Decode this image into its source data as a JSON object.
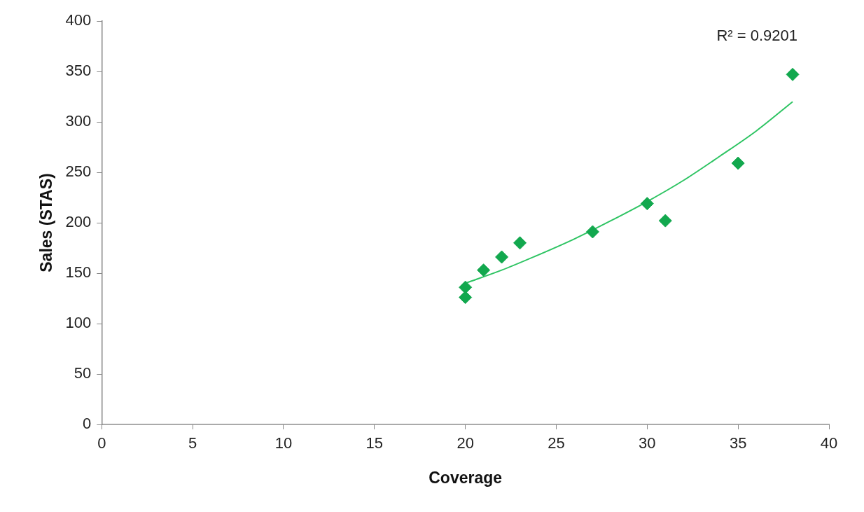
{
  "chart_data": {
    "type": "scatter",
    "xlabel": "Coverage",
    "ylabel": "Sales (STAS)",
    "xlim": [
      0,
      40
    ],
    "xticks": [
      0,
      5,
      10,
      15,
      20,
      25,
      30,
      35,
      40
    ],
    "ylim": [
      0,
      400
    ],
    "yticks": [
      0,
      50,
      100,
      150,
      200,
      250,
      300,
      350,
      400
    ],
    "grid": false,
    "legend": false,
    "marker": "diamond",
    "series": [
      {
        "color": "#12a84e",
        "x": [
          20,
          20,
          21,
          22,
          23,
          27,
          30,
          31,
          35,
          38
        ],
        "values": [
          136,
          126,
          153,
          166,
          180,
          191,
          219,
          202,
          259,
          347
        ]
      },
      {
        "type": "line",
        "marker": "none",
        "color": "#2ec463",
        "x": [
          20,
          22,
          24,
          26,
          28,
          30,
          32,
          34,
          36,
          38
        ],
        "values": [
          140,
          153,
          168,
          184,
          202,
          221,
          242,
          266,
          291,
          320
        ]
      }
    ],
    "annotations": [
      "R² = 0.9201"
    ]
  }
}
